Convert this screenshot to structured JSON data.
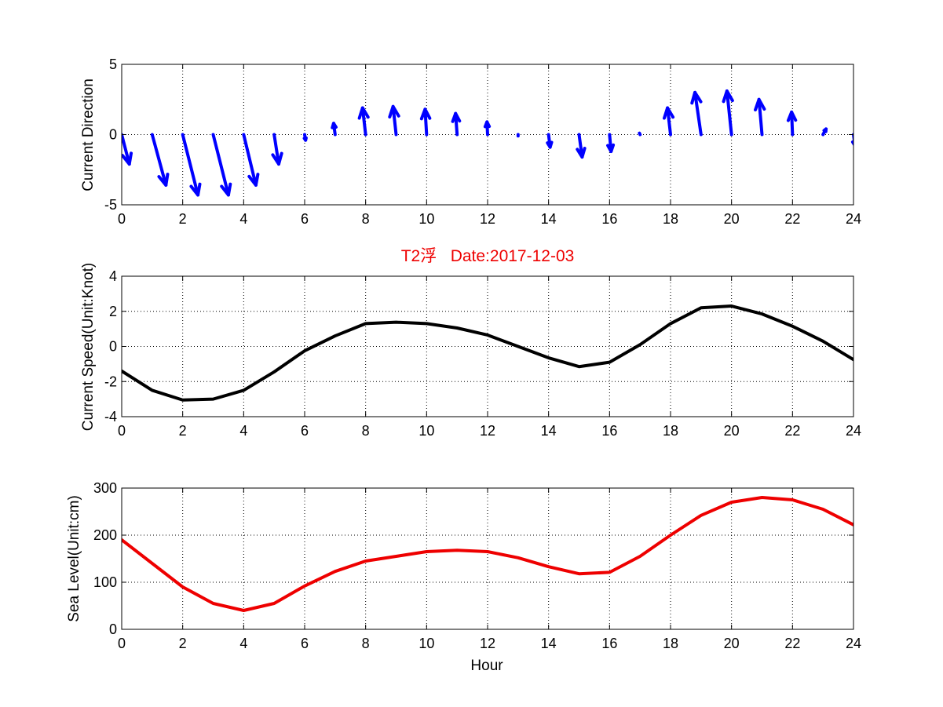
{
  "colors": {
    "arrows": "#0000ff",
    "speed_line": "#000000",
    "sea_level_line": "#ee0000",
    "title": "#ee0000"
  },
  "chart_data": [
    {
      "type": "quiver",
      "title": "",
      "xlabel": "",
      "ylabel": "Current Direction",
      "xlim": [
        0,
        24
      ],
      "ylim": [
        -5,
        5
      ],
      "xticks": [
        0,
        2,
        4,
        6,
        8,
        10,
        12,
        14,
        16,
        18,
        20,
        22,
        24
      ],
      "yticks": [
        -5,
        0,
        5
      ],
      "grid": true,
      "x": [
        0,
        1,
        2,
        3,
        4,
        5,
        6,
        7,
        8,
        9,
        10,
        11,
        12,
        13,
        14,
        15,
        16,
        17,
        18,
        19,
        20,
        21,
        22,
        23,
        24
      ],
      "u": [
        0.25,
        0.45,
        0.5,
        0.5,
        0.4,
        0.15,
        0.03,
        -0.05,
        -0.1,
        -0.1,
        -0.05,
        -0.05,
        -0.02,
        0,
        0.05,
        0.1,
        0.05,
        -0.02,
        -0.1,
        -0.2,
        -0.15,
        -0.1,
        -0.03,
        0.1,
        0.05
      ],
      "v": [
        -2.1,
        -3.6,
        -4.3,
        -4.3,
        -3.6,
        -2.1,
        -0.4,
        0.8,
        1.9,
        2.0,
        1.8,
        1.5,
        0.9,
        -0.1,
        -0.9,
        -1.6,
        -1.2,
        0.1,
        1.9,
        3.0,
        3.1,
        2.5,
        1.6,
        0.4,
        -0.8
      ]
    },
    {
      "type": "line",
      "title": "T2浮   Date:2017-12-03",
      "xlabel": "",
      "ylabel": "Current Speed(Unit:Knot)",
      "xlim": [
        0,
        24
      ],
      "ylim": [
        -4,
        4
      ],
      "xticks": [
        0,
        2,
        4,
        6,
        8,
        10,
        12,
        14,
        16,
        18,
        20,
        22,
        24
      ],
      "yticks": [
        -4,
        -2,
        0,
        2,
        4
      ],
      "grid": true,
      "x": [
        0,
        1,
        2,
        3,
        4,
        5,
        6,
        7,
        8,
        9,
        10,
        11,
        12,
        13,
        14,
        15,
        16,
        17,
        18,
        19,
        20,
        21,
        22,
        23,
        24
      ],
      "series": [
        {
          "values": [
            -1.4,
            -2.5,
            -3.05,
            -3.0,
            -2.5,
            -1.45,
            -0.25,
            0.6,
            1.3,
            1.38,
            1.3,
            1.05,
            0.65,
            0.0,
            -0.65,
            -1.15,
            -0.9,
            0.1,
            1.3,
            2.2,
            2.3,
            1.85,
            1.15,
            0.3,
            -0.75
          ]
        }
      ]
    },
    {
      "type": "line",
      "title": "",
      "xlabel": "Hour",
      "ylabel": "Sea Level(Unit:cm)",
      "xlim": [
        0,
        24
      ],
      "ylim": [
        0,
        300
      ],
      "xticks": [
        0,
        2,
        4,
        6,
        8,
        10,
        12,
        14,
        16,
        18,
        20,
        22,
        24
      ],
      "yticks": [
        0,
        100,
        200,
        300
      ],
      "grid": true,
      "x": [
        0,
        1,
        2,
        3,
        4,
        5,
        6,
        7,
        8,
        9,
        10,
        11,
        12,
        13,
        14,
        15,
        16,
        17,
        18,
        19,
        20,
        21,
        22,
        23,
        24
      ],
      "series": [
        {
          "values": [
            190,
            140,
            90,
            55,
            40,
            55,
            92,
            123,
            145,
            155,
            165,
            168,
            165,
            152,
            133,
            118,
            121,
            155,
            200,
            242,
            270,
            280,
            275,
            255,
            222
          ]
        }
      ]
    }
  ]
}
